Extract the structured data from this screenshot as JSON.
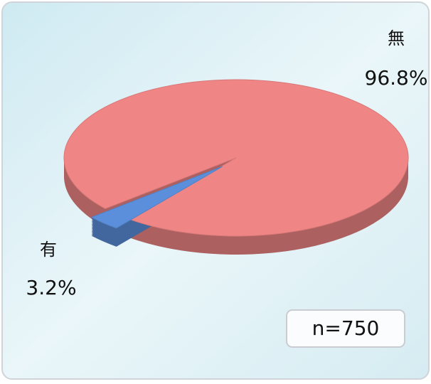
{
  "chart_data": {
    "type": "pie",
    "categories": [
      "無",
      "有"
    ],
    "values": [
      96.8,
      3.2
    ],
    "value_labels": [
      "96.8%",
      "3.2%"
    ],
    "colors": [
      "#ef8585",
      "#5b8fdc"
    ],
    "annotation": "n=750"
  }
}
